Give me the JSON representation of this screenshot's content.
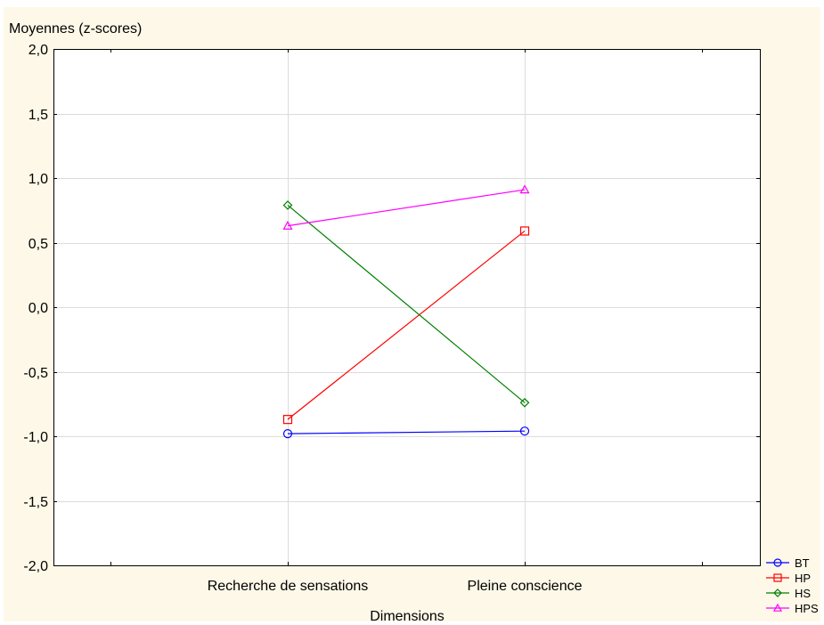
{
  "chart_data": {
    "type": "line",
    "ylabel": "Moyennes (z-scores)",
    "xlabel": "Dimensions",
    "categories": [
      "Recherche de sensations",
      "Pleine conscience"
    ],
    "ylim": [
      -2.0,
      2.0
    ],
    "yticks": [
      "2,0",
      "1,5",
      "1,0",
      "0,5",
      "0,0",
      "-0,5",
      "-1,0",
      "-1,5",
      "-2,0"
    ],
    "ytick_values": [
      2.0,
      1.5,
      1.0,
      0.5,
      0.0,
      -0.5,
      -1.0,
      -1.5,
      -2.0
    ],
    "grid": true,
    "legend_position": "bottom-right",
    "series": [
      {
        "name": "BT",
        "values": [
          -0.98,
          -0.96
        ],
        "color": "#0000ff",
        "marker": "circle"
      },
      {
        "name": "HP",
        "values": [
          -0.87,
          0.59
        ],
        "color": "#ff0000",
        "marker": "square"
      },
      {
        "name": "HS",
        "values": [
          0.79,
          -0.74
        ],
        "color": "#008000",
        "marker": "diamond"
      },
      {
        "name": "HPS",
        "values": [
          0.63,
          0.91
        ],
        "color": "#ff00ff",
        "marker": "triangle"
      }
    ]
  }
}
